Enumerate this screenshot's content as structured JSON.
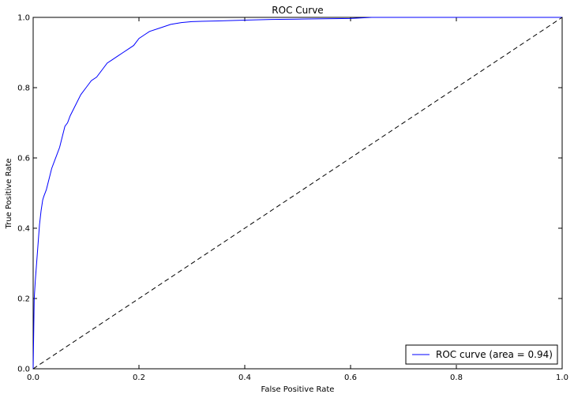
{
  "chart_data": {
    "type": "line",
    "title": "ROC Curve",
    "xlabel": "False Positive Rate",
    "ylabel": "True Positive Rate",
    "xlim": [
      0.0,
      1.0
    ],
    "ylim": [
      0.0,
      1.0
    ],
    "x_ticks": [
      "0.0",
      "0.2",
      "0.4",
      "0.6",
      "0.8",
      "1.0"
    ],
    "y_ticks": [
      "0.0",
      "0.2",
      "0.4",
      "0.6",
      "0.8",
      "1.0"
    ],
    "grid": false,
    "legend_position": "bottom-right",
    "series": [
      {
        "name": "ROC curve (area = 0.94)",
        "color": "#0000ff",
        "style": "solid",
        "x": [
          0.0,
          0.001,
          0.002,
          0.004,
          0.006,
          0.008,
          0.01,
          0.012,
          0.015,
          0.018,
          0.02,
          0.025,
          0.03,
          0.035,
          0.04,
          0.045,
          0.05,
          0.055,
          0.06,
          0.065,
          0.07,
          0.08,
          0.09,
          0.1,
          0.11,
          0.12,
          0.13,
          0.14,
          0.15,
          0.16,
          0.17,
          0.18,
          0.19,
          0.2,
          0.21,
          0.22,
          0.24,
          0.26,
          0.28,
          0.3,
          0.35,
          0.4,
          0.45,
          0.5,
          0.55,
          0.6,
          0.64,
          0.7,
          0.8,
          0.9,
          1.0
        ],
        "y": [
          0.0,
          0.1,
          0.2,
          0.25,
          0.29,
          0.33,
          0.37,
          0.41,
          0.45,
          0.48,
          0.49,
          0.51,
          0.54,
          0.57,
          0.59,
          0.61,
          0.63,
          0.66,
          0.69,
          0.7,
          0.72,
          0.75,
          0.78,
          0.8,
          0.82,
          0.83,
          0.85,
          0.87,
          0.88,
          0.89,
          0.9,
          0.91,
          0.92,
          0.94,
          0.95,
          0.96,
          0.97,
          0.98,
          0.985,
          0.988,
          0.99,
          0.992,
          0.994,
          0.995,
          0.996,
          0.997,
          1.0,
          1.0,
          1.0,
          1.0,
          1.0
        ]
      },
      {
        "name": "",
        "color": "#000000",
        "style": "dashed",
        "x": [
          0.0,
          1.0
        ],
        "y": [
          0.0,
          1.0
        ]
      }
    ]
  }
}
